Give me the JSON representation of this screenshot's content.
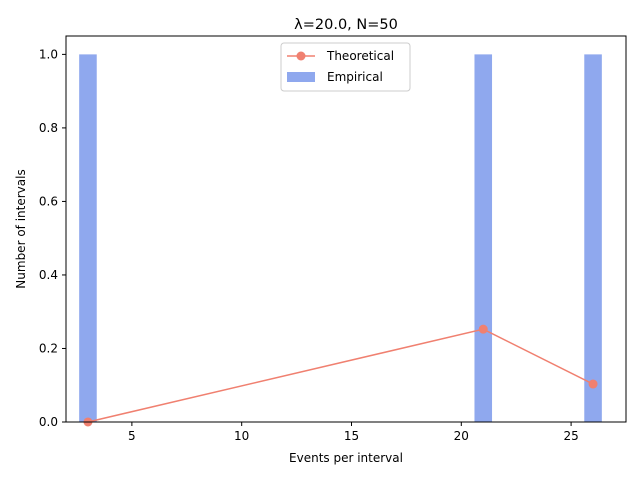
{
  "chart_data": {
    "type": "bar",
    "title": "λ=20.0, N=50",
    "xlabel": "Events per interval",
    "ylabel": "Number of intervals",
    "xlim": [
      2.0,
      27.5
    ],
    "ylim": [
      0,
      1.05
    ],
    "xticks": [
      5,
      10,
      15,
      20,
      25
    ],
    "yticks": [
      0.0,
      0.2,
      0.4,
      0.6,
      0.8,
      1.0
    ],
    "xtick_labels": [
      "5",
      "10",
      "15",
      "20",
      "25"
    ],
    "ytick_labels": [
      "0.0",
      "0.2",
      "0.4",
      "0.6",
      "0.8",
      "1.0"
    ],
    "bar_width": 0.8,
    "grid": false,
    "legend_position": "top-center",
    "series": [
      {
        "name": "Theoretical",
        "type": "line",
        "marker": "circle",
        "color": "#f08070",
        "x": [
          3,
          21,
          26
        ],
        "y": [
          0.0001,
          0.2525,
          0.1032
        ]
      },
      {
        "name": "Empirical",
        "type": "bar",
        "color": "#8fa8ee",
        "x": [
          3,
          21,
          26
        ],
        "y": [
          1,
          1,
          1
        ]
      }
    ]
  }
}
